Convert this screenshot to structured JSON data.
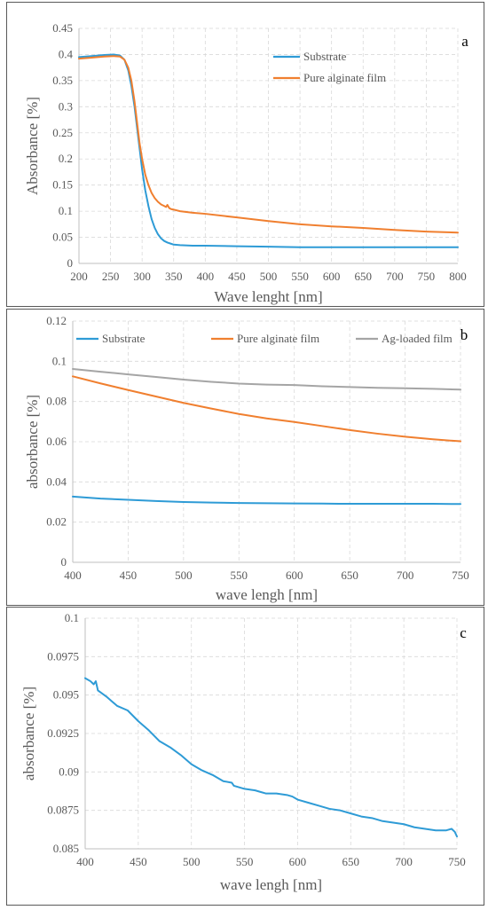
{
  "chart_data": [
    {
      "type": "line",
      "panel": "a",
      "xlabel": "Wave lenght [nm]",
      "ylabel": "Absorbance [%]",
      "xlim": [
        200,
        800
      ],
      "ylim": [
        0,
        0.45
      ],
      "xticks": [
        200,
        250,
        300,
        350,
        400,
        450,
        500,
        550,
        600,
        650,
        700,
        750,
        800
      ],
      "yticks": [
        0,
        0.05,
        0.1,
        0.15,
        0.2,
        0.25,
        0.3,
        0.35,
        0.4,
        0.45
      ],
      "grid": true,
      "legend": "top-right",
      "series": [
        {
          "name": "Substrate",
          "color": "#2e9bd6",
          "x": [
            200,
            220,
            240,
            255,
            265,
            272,
            278,
            283,
            288,
            292,
            296,
            300,
            305,
            310,
            315,
            320,
            325,
            330,
            335,
            340,
            345,
            350,
            360,
            380,
            400,
            450,
            500,
            550,
            600,
            650,
            700,
            750,
            800
          ],
          "y": [
            0.395,
            0.397,
            0.399,
            0.4,
            0.398,
            0.39,
            0.37,
            0.34,
            0.3,
            0.26,
            0.22,
            0.18,
            0.14,
            0.11,
            0.085,
            0.068,
            0.056,
            0.048,
            0.043,
            0.04,
            0.038,
            0.036,
            0.035,
            0.034,
            0.034,
            0.033,
            0.032,
            0.031,
            0.031,
            0.031,
            0.031,
            0.031,
            0.031
          ]
        },
        {
          "name": "Pure alginate film",
          "color": "#f07f2f",
          "x": [
            200,
            220,
            240,
            255,
            265,
            272,
            278,
            283,
            288,
            292,
            296,
            300,
            305,
            310,
            315,
            320,
            325,
            330,
            335,
            338,
            340,
            343,
            346,
            350,
            360,
            380,
            400,
            450,
            500,
            550,
            600,
            650,
            700,
            750,
            800
          ],
          "y": [
            0.392,
            0.394,
            0.396,
            0.397,
            0.396,
            0.39,
            0.375,
            0.35,
            0.31,
            0.27,
            0.23,
            0.2,
            0.17,
            0.15,
            0.135,
            0.125,
            0.118,
            0.113,
            0.11,
            0.108,
            0.112,
            0.106,
            0.104,
            0.103,
            0.1,
            0.097,
            0.095,
            0.088,
            0.081,
            0.075,
            0.071,
            0.068,
            0.064,
            0.061,
            0.059
          ]
        }
      ]
    },
    {
      "type": "line",
      "panel": "b",
      "xlabel": "wave lengh [nm]",
      "ylabel": "absorbance [%]",
      "xlim": [
        400,
        750
      ],
      "ylim": [
        0,
        0.12
      ],
      "xticks": [
        400,
        450,
        500,
        550,
        600,
        650,
        700,
        750
      ],
      "yticks": [
        0,
        0.02,
        0.04,
        0.06,
        0.08,
        0.1,
        0.12
      ],
      "grid": true,
      "legend": "top",
      "series": [
        {
          "name": "Substrate",
          "color": "#2e9bd6",
          "x": [
            400,
            425,
            450,
            475,
            500,
            525,
            550,
            575,
            600,
            625,
            650,
            675,
            700,
            725,
            750
          ],
          "y": [
            0.0327,
            0.0317,
            0.0311,
            0.0305,
            0.03,
            0.0297,
            0.0295,
            0.0294,
            0.0293,
            0.0292,
            0.0291,
            0.0291,
            0.0291,
            0.0291,
            0.029
          ]
        },
        {
          "name": "Pure alginate film",
          "color": "#f07f2f",
          "x": [
            400,
            425,
            450,
            475,
            500,
            525,
            550,
            575,
            600,
            625,
            650,
            675,
            700,
            725,
            750
          ],
          "y": [
            0.0925,
            0.089,
            0.0857,
            0.0825,
            0.0793,
            0.0765,
            0.0738,
            0.0716,
            0.0698,
            0.0678,
            0.0658,
            0.064,
            0.0625,
            0.0612,
            0.0602
          ]
        },
        {
          "name": "Ag-loaded film",
          "color": "#a5a5a5",
          "x": [
            400,
            425,
            450,
            475,
            500,
            525,
            550,
            575,
            600,
            625,
            650,
            675,
            700,
            725,
            750
          ],
          "y": [
            0.0962,
            0.0948,
            0.0935,
            0.0922,
            0.0909,
            0.0898,
            0.0889,
            0.0884,
            0.0882,
            0.0876,
            0.0872,
            0.0868,
            0.0866,
            0.0863,
            0.0859
          ]
        }
      ]
    },
    {
      "type": "line",
      "panel": "c",
      "xlabel": "wave lengh [nm]",
      "ylabel": "absorbance [%]",
      "xlim": [
        400,
        750
      ],
      "ylim": [
        0.085,
        0.1
      ],
      "xticks": [
        400,
        450,
        500,
        550,
        600,
        650,
        700,
        750
      ],
      "yticks": [
        0.085,
        0.0875,
        0.09,
        0.0925,
        0.095,
        0.0975,
        0.1
      ],
      "ytick_labels": [
        "0.085",
        "0.0875",
        "0.09",
        "0.0925",
        "0.095",
        "0.0975",
        "0.1"
      ],
      "grid": true,
      "legend": "none",
      "series": [
        {
          "color": "#2e9bd6",
          "x": [
            400,
            405,
            408,
            410,
            412,
            420,
            430,
            440,
            450,
            460,
            470,
            480,
            490,
            500,
            510,
            520,
            530,
            538,
            540,
            545,
            550,
            560,
            565,
            570,
            580,
            590,
            595,
            600,
            610,
            620,
            630,
            640,
            650,
            660,
            670,
            680,
            690,
            700,
            710,
            720,
            730,
            740,
            745,
            748,
            750
          ],
          "y": [
            0.0961,
            0.0959,
            0.0957,
            0.0959,
            0.0953,
            0.0949,
            0.0943,
            0.094,
            0.0933,
            0.0927,
            0.092,
            0.0916,
            0.0911,
            0.0905,
            0.0901,
            0.0898,
            0.0894,
            0.0893,
            0.0891,
            0.089,
            0.0889,
            0.0888,
            0.0887,
            0.0886,
            0.0886,
            0.0885,
            0.0884,
            0.0882,
            0.088,
            0.0878,
            0.0876,
            0.0875,
            0.0873,
            0.0871,
            0.087,
            0.0868,
            0.0867,
            0.0866,
            0.0864,
            0.0863,
            0.0862,
            0.0862,
            0.0863,
            0.0861,
            0.0858
          ]
        }
      ]
    }
  ]
}
